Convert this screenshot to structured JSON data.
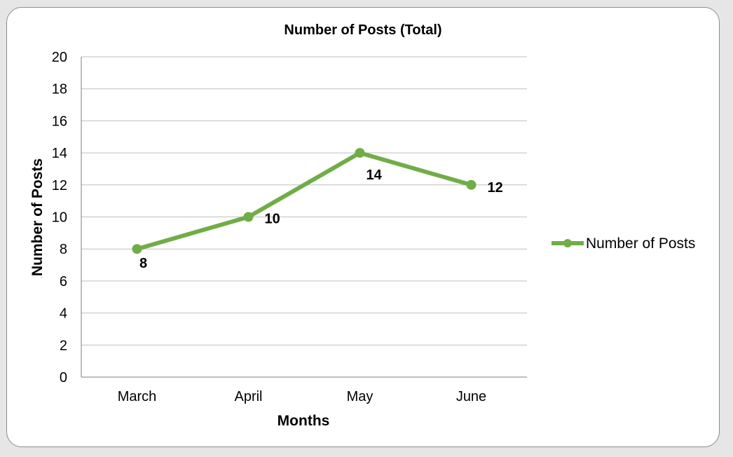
{
  "chart_data": {
    "type": "line",
    "title": "Number of Posts (Total)",
    "xlabel": "Months",
    "ylabel": "Number of Posts",
    "categories": [
      "March",
      "April",
      "May",
      "June"
    ],
    "series": [
      {
        "name": "Number of Posts",
        "values": [
          8,
          10,
          14,
          12
        ],
        "color": "#70ad47"
      }
    ],
    "ylim": [
      0,
      20
    ],
    "yticks": [
      "0",
      "2",
      "4",
      "6",
      "8",
      "10",
      "12",
      "14",
      "16",
      "18",
      "20"
    ],
    "data_labels": [
      "8",
      "10",
      "14",
      "12"
    ],
    "grid": true,
    "legend_position": "right"
  }
}
